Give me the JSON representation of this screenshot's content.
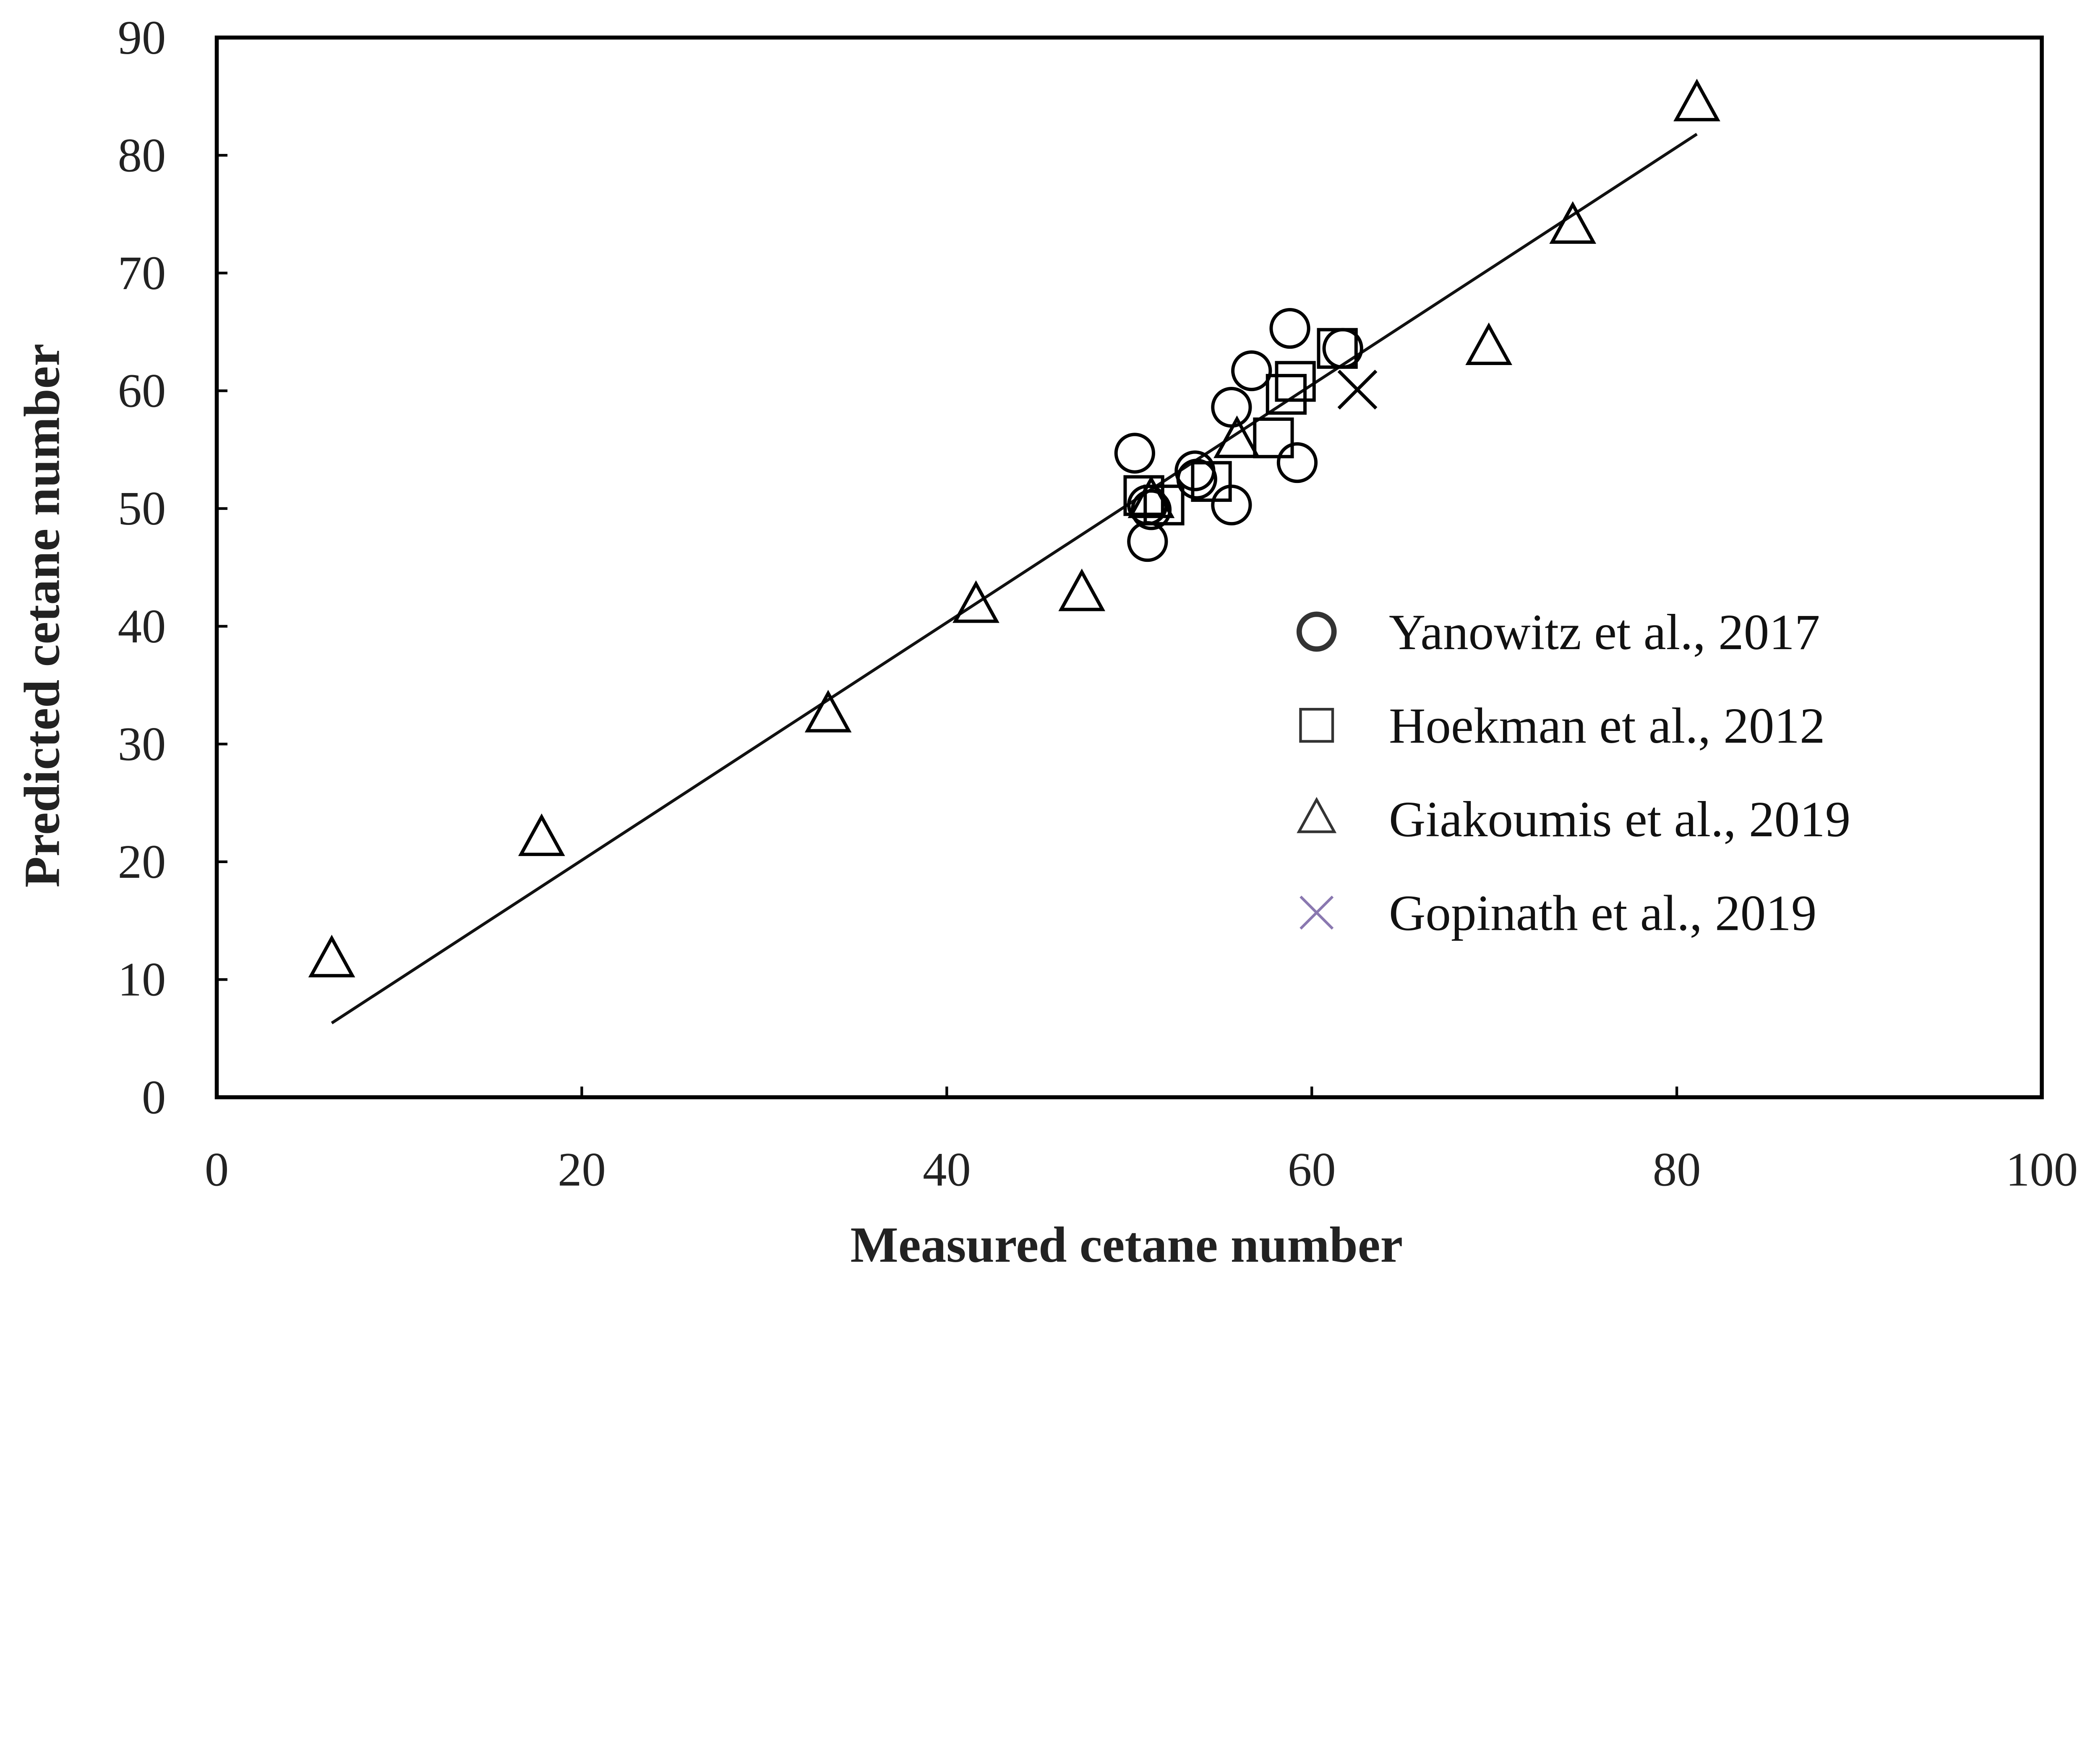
{
  "chart_data": {
    "type": "scatter",
    "title": "",
    "xlabel": "Measured cetane number",
    "ylabel": "Predicted cetane number",
    "xlim": [
      0,
      100
    ],
    "ylim": [
      0,
      90
    ],
    "xticks": [
      0,
      20,
      40,
      60,
      80,
      100
    ],
    "yticks": [
      0,
      10,
      20,
      30,
      40,
      50,
      60,
      70,
      80,
      90
    ],
    "grid": false,
    "legend_position": "lower-right",
    "series": [
      {
        "name": "Yanowitz et al., 2017",
        "marker": "circle",
        "color": "#000000",
        "points": [
          [
            50.3,
            54.7
          ],
          [
            51.0,
            50.3
          ],
          [
            51.0,
            47.2
          ],
          [
            51.2,
            49.9
          ],
          [
            53.6,
            53.2
          ],
          [
            53.7,
            52.5
          ],
          [
            55.6,
            58.6
          ],
          [
            55.6,
            50.3
          ],
          [
            56.7,
            61.7
          ],
          [
            58.8,
            65.3
          ],
          [
            59.2,
            53.9
          ],
          [
            61.7,
            63.6
          ]
        ]
      },
      {
        "name": "Hoekman et al., 2012",
        "marker": "square",
        "color": "#000000",
        "points": [
          [
            50.8,
            51.1
          ],
          [
            51.9,
            50.3
          ],
          [
            54.5,
            52.3
          ],
          [
            57.9,
            56.0
          ],
          [
            58.6,
            59.7
          ],
          [
            59.1,
            60.8
          ],
          [
            61.4,
            63.6
          ]
        ]
      },
      {
        "name": "Giakoumis et al., 2019",
        "marker": "triangle",
        "color": "#000000",
        "points": [
          [
            6.3,
            11.6
          ],
          [
            17.8,
            21.9
          ],
          [
            33.5,
            32.4
          ],
          [
            41.6,
            41.7
          ],
          [
            47.4,
            42.7
          ],
          [
            51.2,
            50.6
          ],
          [
            55.9,
            55.7
          ],
          [
            69.7,
            63.6
          ],
          [
            74.3,
            73.9
          ],
          [
            81.1,
            84.3
          ]
        ]
      },
      {
        "name": "Gopinath et al., 2019",
        "marker": "x",
        "color": "#000000",
        "legend_color": "#8a78b0",
        "points": [
          [
            62.5,
            60.1
          ]
        ]
      }
    ],
    "fit_line": {
      "x": [
        6.3,
        81.1
      ],
      "y": [
        6.3,
        81.8
      ]
    }
  }
}
